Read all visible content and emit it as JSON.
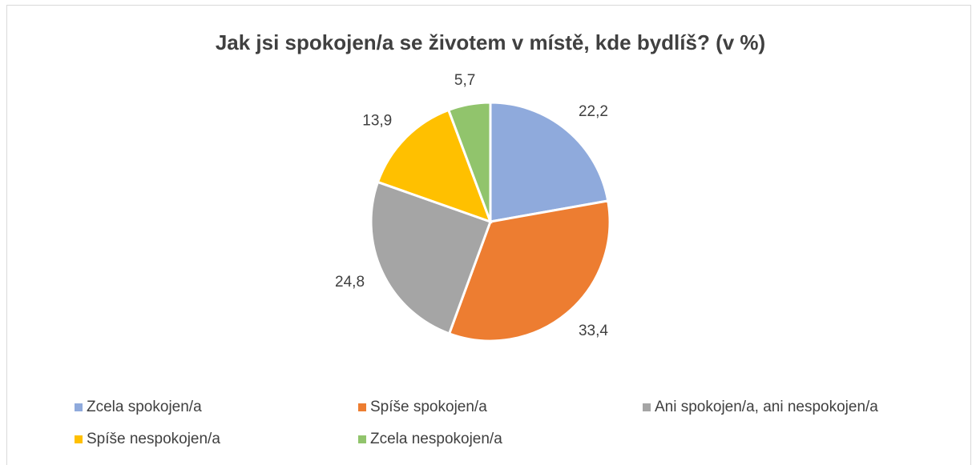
{
  "chart_data": {
    "type": "pie",
    "title": "Jak jsi spokojen/a se životem v místě, kde bydlíš? (v %)",
    "categories": [
      "Zcela spokojen/a",
      "Spíše spokojen/a",
      "Ani spokojen/a, ani nespokojen/a",
      "Spíše nespokojen/a",
      "Zcela nespokojen/a"
    ],
    "values": [
      22.2,
      33.4,
      24.8,
      13.9,
      5.7
    ],
    "value_labels": [
      "22,2",
      "33,4",
      "24,8",
      "13,9",
      "5,7"
    ],
    "colors": [
      "#8faadc",
      "#ed7d31",
      "#a5a5a5",
      "#ffc000",
      "#91c46c"
    ],
    "legend": "bottom"
  }
}
